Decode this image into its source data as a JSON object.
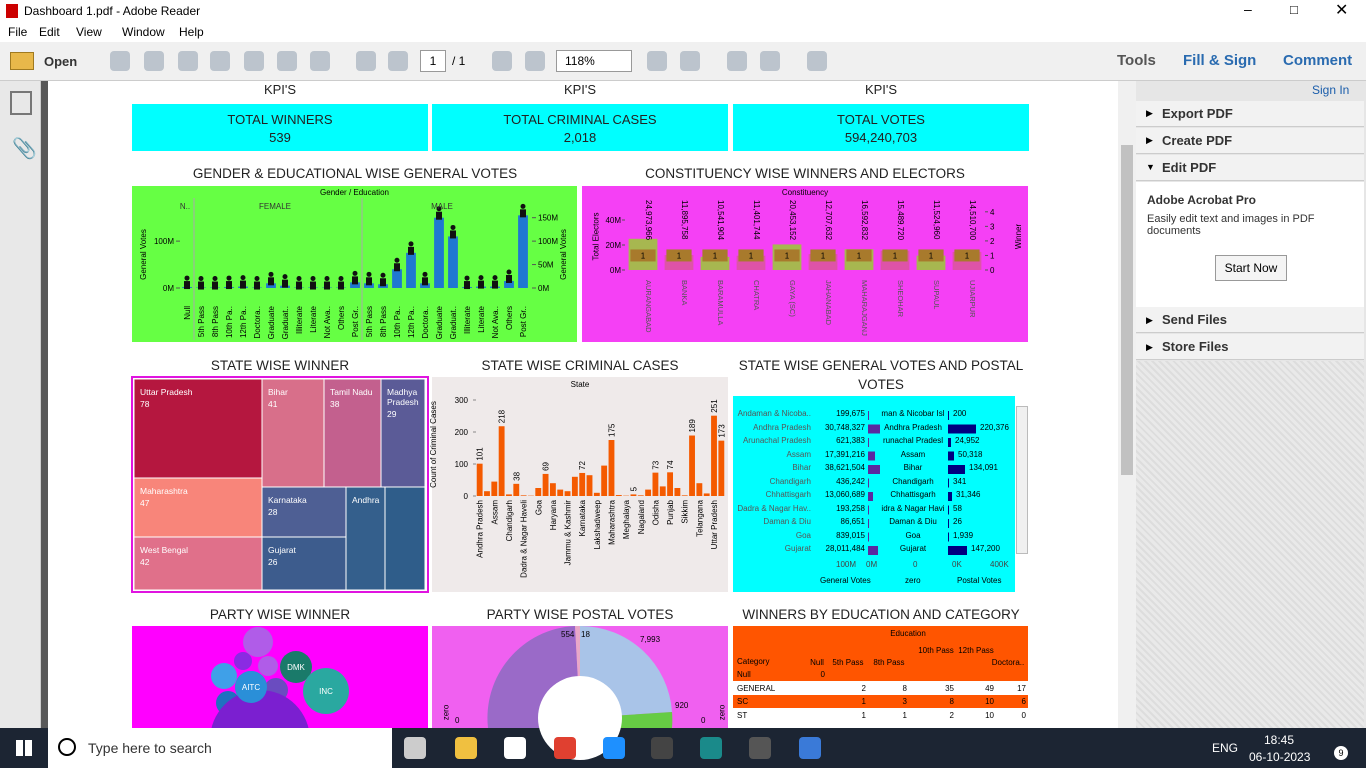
{
  "window": {
    "title": "Dashboard 1.pdf - Adobe Reader"
  },
  "menu": [
    "File",
    "Edit",
    "View",
    "Window",
    "Help"
  ],
  "toolbar": {
    "open": "Open",
    "page": "1",
    "page_total": "/ 1",
    "zoom": "118%",
    "tabs": [
      "Tools",
      "Fill & Sign",
      "Comment"
    ]
  },
  "sidebar": {
    "sign_in": "Sign In",
    "sections_top": [
      "Export PDF",
      "Create PDF",
      "Edit PDF"
    ],
    "product": "Adobe Acrobat Pro",
    "description": "Easily edit text and images in PDF documents",
    "button": "Start Now",
    "sections_bottom": [
      "Send Files",
      "Store Files"
    ]
  },
  "kpis": [
    {
      "heading": "KPI'S",
      "label": "TOTAL WINNERS",
      "value": "539"
    },
    {
      "heading": "KPI'S",
      "label": "TOTAL CRIMINAL CASES",
      "value": "2,018"
    },
    {
      "heading": "KPI'S",
      "label": "TOTAL VOTES",
      "value": "594,240,703"
    }
  ],
  "titles": [
    "GENDER & EDUCATIONAL WISE  GENERAL VOTES",
    "CONSTITUENCY WISE WINNERS AND ELECTORS",
    "STATE WISE WINNER",
    "STATE WISE CRIMINAL CASES",
    "STATE WISE GENERAL VOTES AND POSTAL VOTES",
    "PARTY WISE WINNER",
    "PARTY WISE  POSTAL VOTES",
    "WINNERS BY EDUCATION  AND  CATEGORY"
  ],
  "gender_chart": {
    "header": "Gender / Education",
    "groups": [
      "N..",
      "FEMALE",
      "MALE"
    ],
    "y_label": "General Votes",
    "y2_label": "General Votes",
    "categories": [
      "Null",
      "5th Pass",
      "8th Pass",
      "10th Pa..",
      "12th Pa..",
      "Doctora..",
      "Graduate",
      "Graduat..",
      "Illiterate",
      "Literate",
      "Not Ava..",
      "Others",
      "Post Gr..",
      "5th Pass",
      "8th Pass",
      "10th Pa..",
      "12th Pa..",
      "Doctora..",
      "Graduate",
      "Graduat..",
      "Illiterate",
      "Literate",
      "Not Ava..",
      "Others",
      "Post Gr.."
    ],
    "values": [
      2000000,
      1000000,
      1000000,
      2000000,
      3000000,
      1000000,
      10000000,
      5000000,
      1000000,
      1000000,
      1000000,
      1000000,
      12000000,
      10000000,
      8000000,
      40000000,
      75000000,
      10000000,
      150000000,
      110000000,
      2000000,
      3000000,
      3000000,
      15000000,
      155000000
    ],
    "color": "#1f78d1",
    "ylim": [
      0,
      160000000
    ],
    "yticks": [
      {
        "value": 0,
        "label": "0M"
      },
      {
        "value": 100000000,
        "label": "100M"
      }
    ],
    "y2ticks": [
      {
        "value": 0,
        "label": "0M"
      },
      {
        "value": 50000000,
        "label": "50M"
      },
      {
        "value": 100000000,
        "label": "100M"
      },
      {
        "value": 150000000,
        "label": "150M"
      }
    ]
  },
  "constituency_chart": {
    "header": "Constituency",
    "y_label": "Total Electors",
    "y2_label": "Winner",
    "categories": [
      "AURANGABAD",
      "BANKA",
      "BARAMULLA",
      "CHATRA",
      "GAYA (SC)",
      "JAHANABAD",
      "MAHARAJGANJ",
      "SHEOHAR",
      "SUPAUL",
      "UJIARPUR"
    ],
    "electors": [
      24973966,
      11895758,
      10541904,
      11401744,
      20453152,
      12707632,
      16592832,
      15489720,
      11524960,
      14510700
    ],
    "electors_labels": [
      "24,973,966",
      "11,895,758",
      "10,541,904",
      "11,401,744",
      "20,453,152",
      "12,707,632",
      "16,592,832",
      "15,489,720",
      "11,524,960",
      "14,510,700"
    ],
    "winners": [
      1,
      1,
      1,
      1,
      1,
      1,
      1,
      1,
      1,
      1
    ],
    "ylim": [
      0,
      48000000
    ],
    "yticks": [
      {
        "value": 0,
        "label": "0M"
      },
      {
        "value": 20000000,
        "label": "20M"
      },
      {
        "value": 40000000,
        "label": "40M"
      }
    ],
    "y2lim": [
      0,
      4.4
    ],
    "y2ticks": [
      0,
      1,
      2,
      3,
      4
    ]
  },
  "treemap": [
    {
      "name": "Uttar Pradesh",
      "value": "78"
    },
    {
      "name": "Maharashtra",
      "value": "47"
    },
    {
      "name": "West Bengal",
      "value": "42"
    },
    {
      "name": "Bihar",
      "value": "41"
    },
    {
      "name": "Tamil Nadu",
      "value": "38"
    },
    {
      "name": "Madhya Pradesh",
      "value": "29"
    },
    {
      "name": "Karnataka",
      "value": "28"
    },
    {
      "name": "Gujarat",
      "value": "26"
    },
    {
      "name": "Andhra",
      "value": null
    }
  ],
  "criminal_chart": {
    "header": "State",
    "y_label": "Count of Criminal Cases",
    "categories": [
      "Andhra Pradesh",
      null,
      "Assam",
      null,
      "Chandigarh",
      null,
      "Dadra & Nagar Haveli",
      null,
      "Goa",
      null,
      "Haryana",
      null,
      "Jammu & Kashmir",
      null,
      "Karnataka",
      null,
      "Lakshadweep",
      null,
      "Maharashtra",
      null,
      "Meghalaya",
      null,
      "Nagaland",
      null,
      "Odisha",
      null,
      "Punjab",
      null,
      "Sikkim",
      null,
      "Telangana",
      null,
      "Uttar Pradesh",
      null
    ],
    "values": [
      101,
      15,
      45,
      218,
      5,
      38,
      2,
      1,
      25,
      69,
      40,
      20,
      15,
      60,
      72,
      65,
      10,
      95,
      175,
      3,
      1,
      5,
      2,
      20,
      73,
      30,
      74,
      25,
      2,
      189,
      40,
      8,
      251,
      173
    ],
    "value_labels": [
      "101",
      null,
      null,
      "218",
      null,
      "38",
      null,
      null,
      null,
      "69",
      null,
      null,
      null,
      null,
      "72",
      null,
      null,
      null,
      "175",
      null,
      null,
      "5",
      null,
      null,
      "73",
      null,
      "74",
      null,
      null,
      "189",
      null,
      null,
      "251",
      "173"
    ],
    "color": "#f45a00",
    "ylim": [
      0,
      300
    ],
    "yticks": [
      0,
      100,
      200,
      300
    ]
  },
  "votes_table": {
    "rows": [
      [
        "Andaman & Nicoba..",
        "199,675",
        "man & Nicobar Isl",
        "200"
      ],
      [
        "Andhra Pradesh",
        "30,748,327",
        "Andhra Pradesh",
        "220,376"
      ],
      [
        "Arunachal Pradesh",
        "621,383",
        "runachal Pradesl",
        "24,952"
      ],
      [
        "Assam",
        "17,391,216",
        "Assam",
        "50,318"
      ],
      [
        "Bihar",
        "38,621,504",
        "Bihar",
        "134,091"
      ],
      [
        "Chandigarh",
        "436,242",
        "Chandigarh",
        "341"
      ],
      [
        "Chhattisgarh",
        "13,060,689",
        "Chhattisgarh",
        "31,346"
      ],
      [
        "Dadra & Nagar Hav..",
        "193,258",
        "idra & Nagar Havi",
        "58"
      ],
      [
        "Daman & Diu",
        "86,651",
        "Daman & Diu",
        "26"
      ],
      [
        "Goa",
        "839,015",
        "Goa",
        "1,939"
      ],
      [
        "Gujarat",
        "28,011,484",
        "Gujarat",
        "147,200"
      ]
    ],
    "axis_labels": [
      "100M",
      "0M",
      "0",
      "0K",
      "400K"
    ],
    "columns": [
      "General Votes",
      "zero",
      "Postal Votes"
    ]
  },
  "party_bubbles": [
    "DMK",
    "AITC",
    "INC"
  ],
  "postal_labels": [
    "554",
    "18",
    "7,993",
    "920",
    "zero",
    "zero",
    "0",
    "0"
  ],
  "education_table": {
    "header": "Education",
    "category_label": "Category",
    "columns": [
      "Null",
      "5th Pass",
      "8th Pass",
      "10th Pass",
      "12th Pass",
      "Doctora.."
    ],
    "rows": [
      {
        "category": "Null",
        "cells": [
          "0",
          null,
          null,
          null,
          null,
          null
        ]
      },
      {
        "category": "GENERAL",
        "cells": [
          null,
          "2",
          "8",
          "35",
          "49",
          "17"
        ]
      },
      {
        "category": "SC",
        "cells": [
          null,
          "1",
          "3",
          "8",
          "10",
          "6"
        ]
      },
      {
        "category": "ST",
        "cells": [
          null,
          "1",
          "1",
          "2",
          "10",
          "0"
        ]
      }
    ]
  },
  "taskbar": {
    "search": "Type here to search",
    "lang": "ENG",
    "time": "18:45",
    "date": "06-10-2023",
    "notifications": "9"
  }
}
